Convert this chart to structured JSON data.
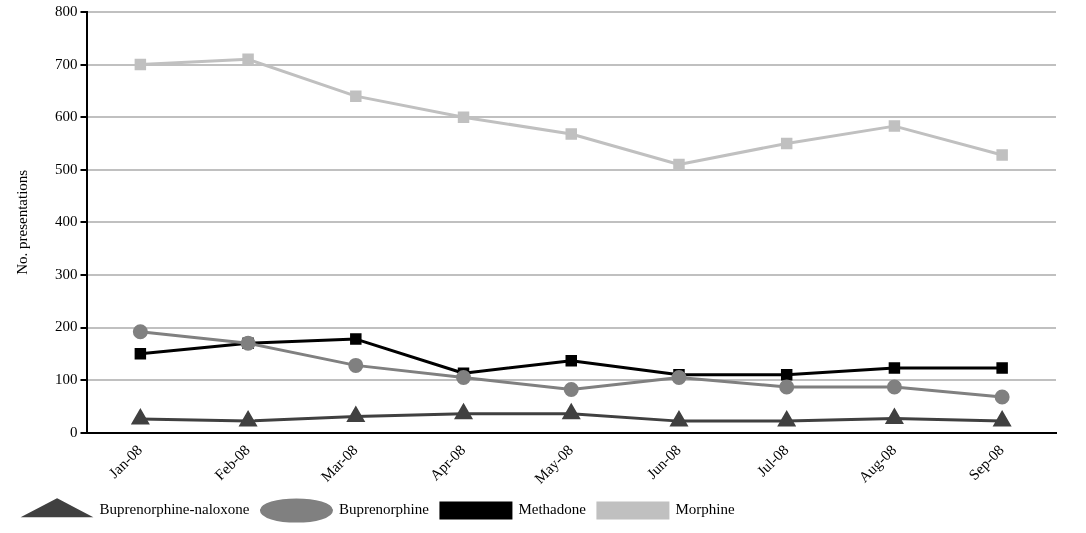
{
  "chart_data": {
    "type": "line",
    "ylabel": "No. presentations",
    "categories": [
      "Jan-08",
      "Feb-08",
      "Mar-08",
      "Apr-08",
      "May-08",
      "Jun-08",
      "Jul-08",
      "Aug-08",
      "Sep-08"
    ],
    "series": [
      {
        "name": "Morphine",
        "color": "#c0c0c0",
        "marker": "square",
        "values": [
          700,
          710,
          640,
          600,
          568,
          510,
          550,
          583,
          528
        ]
      },
      {
        "name": "Methadone",
        "color": "#000000",
        "marker": "square",
        "values": [
          150,
          170,
          178,
          113,
          137,
          110,
          110,
          123,
          123
        ]
      },
      {
        "name": "Buprenorphine",
        "color": "#808080",
        "marker": "circle",
        "values": [
          192,
          170,
          128,
          105,
          82,
          105,
          87,
          87,
          68
        ]
      },
      {
        "name": "Buprenorphine-naloxone",
        "color": "#404040",
        "marker": "triangle",
        "values": [
          26,
          22,
          31,
          36,
          36,
          22,
          22,
          27,
          22
        ]
      }
    ],
    "ylim": [
      0,
      800
    ],
    "yticks": [
      0,
      100,
      200,
      300,
      400,
      500,
      600,
      700,
      800
    ],
    "grid": "y",
    "legend": "bottom",
    "line_style": "solid"
  }
}
